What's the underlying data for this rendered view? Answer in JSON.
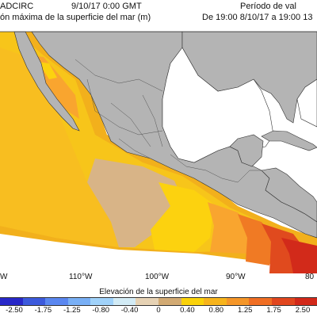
{
  "header": {
    "model": "ADCIRC",
    "datetime": "9/10/17 0:00 GMT",
    "subtitle": "ón máxima de la superficie del mar (m)",
    "period_label": "Período de val",
    "period_range": "De 19:00 8/10/17 a 19:00 13"
  },
  "map": {
    "longitude_labels": [
      "110°W",
      "100°W",
      "90°W",
      "80"
    ],
    "land_color": "#b4b4b4",
    "water_color": "#ffffff",
    "colors": {
      "dark_orange": "#f2b01c",
      "orange": "#f7c51a",
      "yellow": "#fcd20f",
      "tan": "#d8b487",
      "light_orange": "#f9a52f",
      "red_orange": "#f07a24",
      "red": "#e04a1e",
      "dark_red": "#d22a1a"
    }
  },
  "colorbar": {
    "title": "Elevación de la superficie del mar",
    "ticks": [
      "-2.50",
      "-1.75",
      "-1.25",
      "-0.80",
      "-0.40",
      "0",
      "0.40",
      "0.80",
      "1.25",
      "1.75",
      "2.50"
    ],
    "colors": [
      "#2828c8",
      "#3c5adc",
      "#5a87f0",
      "#78aff5",
      "#a0d2fa",
      "#d2ebf5",
      "#e6d2b4",
      "#d2aa73",
      "#fad20a",
      "#f7b41c",
      "#f59628",
      "#f06e23",
      "#e1461e",
      "#d22819"
    ]
  }
}
